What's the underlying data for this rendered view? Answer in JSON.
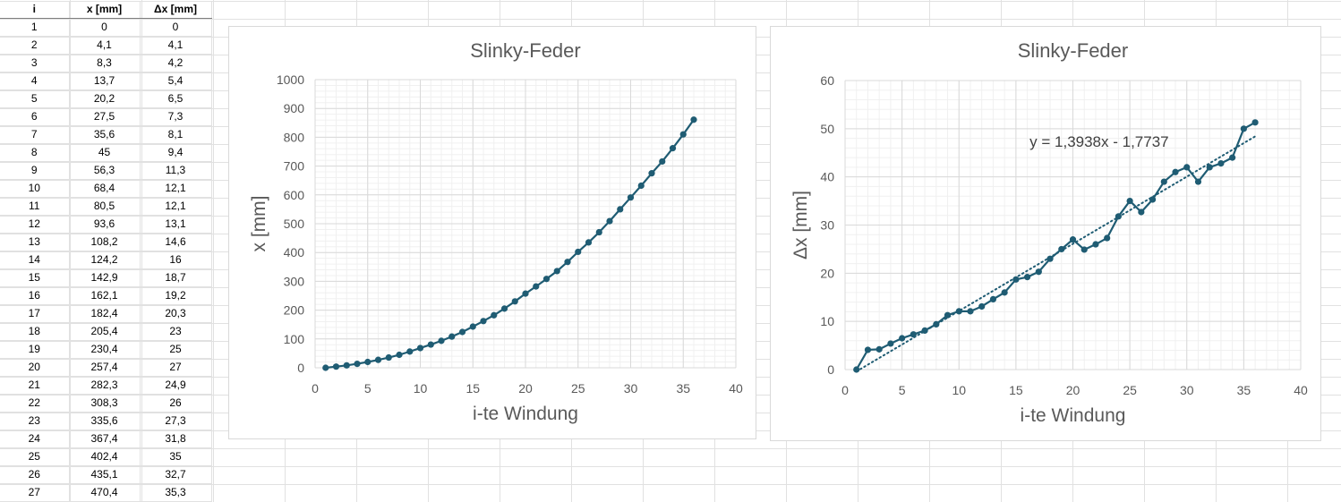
{
  "table": {
    "headers": [
      "i",
      "x [mm]",
      "Δx [mm]"
    ],
    "rows": [
      [
        "1",
        "0",
        "0"
      ],
      [
        "2",
        "4,1",
        "4,1"
      ],
      [
        "3",
        "8,3",
        "4,2"
      ],
      [
        "4",
        "13,7",
        "5,4"
      ],
      [
        "5",
        "20,2",
        "6,5"
      ],
      [
        "6",
        "27,5",
        "7,3"
      ],
      [
        "7",
        "35,6",
        "8,1"
      ],
      [
        "8",
        "45",
        "9,4"
      ],
      [
        "9",
        "56,3",
        "11,3"
      ],
      [
        "10",
        "68,4",
        "12,1"
      ],
      [
        "11",
        "80,5",
        "12,1"
      ],
      [
        "12",
        "93,6",
        "13,1"
      ],
      [
        "13",
        "108,2",
        "14,6"
      ],
      [
        "14",
        "124,2",
        "16"
      ],
      [
        "15",
        "142,9",
        "18,7"
      ],
      [
        "16",
        "162,1",
        "19,2"
      ],
      [
        "17",
        "182,4",
        "20,3"
      ],
      [
        "18",
        "205,4",
        "23"
      ],
      [
        "19",
        "230,4",
        "25"
      ],
      [
        "20",
        "257,4",
        "27"
      ],
      [
        "21",
        "282,3",
        "24,9"
      ],
      [
        "22",
        "308,3",
        "26"
      ],
      [
        "23",
        "335,6",
        "27,3"
      ],
      [
        "24",
        "367,4",
        "31,8"
      ],
      [
        "25",
        "402,4",
        "35"
      ],
      [
        "26",
        "435,1",
        "32,7"
      ],
      [
        "27",
        "470,4",
        "35,3"
      ]
    ]
  },
  "chart_data": [
    {
      "type": "scatter",
      "title": "Slinky-Feder",
      "xlabel": "i-te Windung",
      "ylabel": "x [mm]",
      "xlim": [
        0,
        40
      ],
      "ylim": [
        0,
        1000
      ],
      "xticks": [
        0,
        5,
        10,
        15,
        20,
        25,
        30,
        35,
        40
      ],
      "yticks": [
        0,
        100,
        200,
        300,
        400,
        500,
        600,
        700,
        800,
        900,
        1000
      ],
      "grid": true,
      "minor_grid": true,
      "legend": "none",
      "line_color": "#1f5c73",
      "series": [
        {
          "x": [
            1,
            2,
            3,
            4,
            5,
            6,
            7,
            8,
            9,
            10,
            11,
            12,
            13,
            14,
            15,
            16,
            17,
            18,
            19,
            20,
            21,
            22,
            23,
            24,
            25,
            26,
            27,
            28,
            29,
            30,
            31,
            32,
            33,
            34,
            35,
            36
          ],
          "y": [
            0,
            4.1,
            8.3,
            13.7,
            20.2,
            27.5,
            35.6,
            45,
            56.3,
            68.4,
            80.5,
            93.6,
            108.2,
            124.2,
            142.9,
            162.1,
            182.4,
            205.4,
            230.4,
            257.4,
            282.3,
            308.3,
            335.6,
            367.4,
            402.4,
            435.1,
            470.4,
            509,
            550,
            591,
            632,
            675,
            716,
            762,
            810,
            861
          ]
        }
      ]
    },
    {
      "type": "scatter",
      "title": "Slinky-Feder",
      "xlabel": "i-te Windung",
      "ylabel": "Δx [mm]",
      "xlim": [
        0,
        40
      ],
      "ylim": [
        0,
        60
      ],
      "xticks": [
        0,
        5,
        10,
        15,
        20,
        25,
        30,
        35,
        40
      ],
      "yticks": [
        0,
        10,
        20,
        30,
        40,
        50,
        60
      ],
      "grid": true,
      "minor_grid": true,
      "legend": "none",
      "line_color": "#1f5c73",
      "trendline": {
        "slope": 1.3938,
        "intercept": -1.7737,
        "x_range": [
          1,
          36
        ],
        "label": "y = 1,3938x - 1,7737"
      },
      "series": [
        {
          "x": [
            1,
            2,
            3,
            4,
            5,
            6,
            7,
            8,
            9,
            10,
            11,
            12,
            13,
            14,
            15,
            16,
            17,
            18,
            19,
            20,
            21,
            22,
            23,
            24,
            25,
            26,
            27,
            28,
            29,
            30,
            31,
            32,
            33,
            34,
            35,
            36
          ],
          "y": [
            0,
            4.1,
            4.2,
            5.4,
            6.5,
            7.3,
            8.1,
            9.4,
            11.3,
            12.1,
            12.1,
            13.1,
            14.6,
            16,
            18.7,
            19.2,
            20.3,
            23,
            25,
            27,
            24.9,
            26,
            27.3,
            31.8,
            35,
            32.7,
            35.3,
            39,
            41,
            42,
            39,
            42,
            42.8,
            44,
            50,
            51.3
          ]
        }
      ]
    }
  ]
}
